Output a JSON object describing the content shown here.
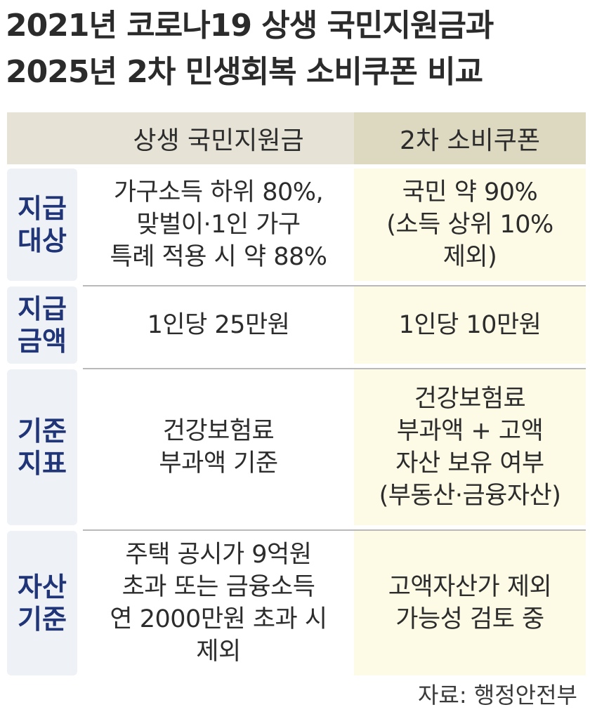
{
  "title": {
    "line1": "2021년 코로나19 상생 국민지원금과",
    "line2": "2025년 2차 민생회복 소비쿠폰 비교"
  },
  "header": {
    "col1": "상생 국민지원금",
    "col2": "2차 소비쿠폰"
  },
  "rows": [
    {
      "label": [
        "지급",
        "대상"
      ],
      "col1": [
        "가구소득 하위 80%,",
        "맞벌이·1인 가구",
        "특례 적용 시 약 88%"
      ],
      "col2": [
        "국민 약 90%",
        "(소득 상위 10%",
        "제외)"
      ]
    },
    {
      "label": [
        "지급",
        "금액"
      ],
      "col1": [
        "1인당 25만원"
      ],
      "col2": [
        "1인당 10만원"
      ]
    },
    {
      "label": [
        "기준",
        "지표"
      ],
      "col1": [
        "건강보험료",
        "부과액 기준"
      ],
      "col2": [
        "건강보험료",
        "부과액 + 고액",
        "자산 보유 여부",
        "(부동산·금융자산)"
      ]
    },
    {
      "label": [
        "자산",
        "기준"
      ],
      "col1": [
        "주택 공시가 9억원",
        "초과 또는 금융소득",
        "연 2000만원 초과 시",
        "제외"
      ],
      "col2": [
        "고액자산가 제외",
        "가능성 검토 중"
      ]
    }
  ],
  "source": "자료: 행정안전부",
  "colors": {
    "label_text": "#1f3577",
    "label_bg": "#eef1f5",
    "header_bg_left": "#e6e2d6",
    "header_bg_right": "#ddd8c0",
    "col2_bg": "#fdfbe6"
  }
}
